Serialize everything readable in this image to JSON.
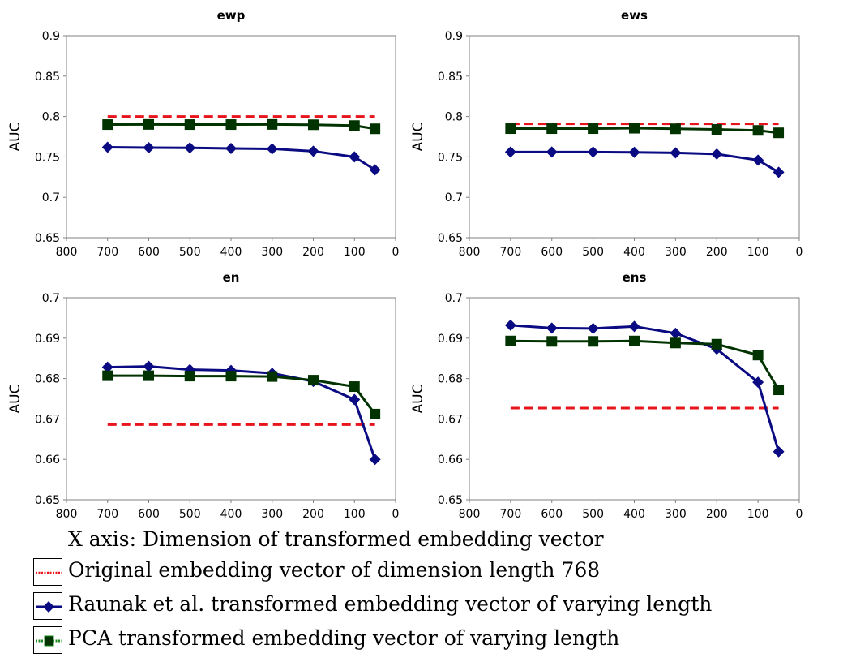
{
  "chart_data": [
    {
      "type": "line",
      "title": "ewp",
      "ylabel": "AUC",
      "xlim": [
        800,
        0
      ],
      "ylim": [
        0.65,
        0.9
      ],
      "xticks": [
        "800",
        "700",
        "600",
        "500",
        "400",
        "300",
        "200",
        "100",
        "0"
      ],
      "yticks": [
        "0.65",
        "0.7",
        "0.75",
        "0.8",
        "0.85",
        "0.9"
      ],
      "x": [
        700,
        600,
        500,
        400,
        300,
        200,
        100,
        50
      ],
      "baseline": 0.8,
      "series": [
        {
          "key": "raunak",
          "values": [
            0.762,
            0.7615,
            0.7612,
            0.7605,
            0.76,
            0.757,
            0.75,
            0.734
          ]
        },
        {
          "key": "pca",
          "values": [
            0.79,
            0.7902,
            0.79,
            0.79,
            0.7902,
            0.7898,
            0.7888,
            0.7848
          ]
        }
      ]
    },
    {
      "type": "line",
      "title": "ews",
      "ylabel": "AUC",
      "xlim": [
        800,
        0
      ],
      "ylim": [
        0.65,
        0.9
      ],
      "xticks": [
        "800",
        "700",
        "600",
        "500",
        "400",
        "300",
        "200",
        "100",
        "0"
      ],
      "yticks": [
        "0.65",
        "0.7",
        "0.75",
        "0.8",
        "0.85",
        "0.9"
      ],
      "x": [
        700,
        600,
        500,
        400,
        300,
        200,
        100,
        50
      ],
      "baseline": 0.791,
      "series": [
        {
          "key": "raunak",
          "values": [
            0.756,
            0.756,
            0.756,
            0.7557,
            0.755,
            0.7535,
            0.746,
            0.731
          ]
        },
        {
          "key": "pca",
          "values": [
            0.785,
            0.785,
            0.785,
            0.7855,
            0.7848,
            0.784,
            0.7828,
            0.7798
          ]
        }
      ]
    },
    {
      "type": "line",
      "title": "en",
      "ylabel": "AUC",
      "xlim": [
        800,
        0
      ],
      "ylim": [
        0.65,
        0.7
      ],
      "xticks": [
        "800",
        "700",
        "600",
        "500",
        "400",
        "300",
        "200",
        "100",
        "0"
      ],
      "yticks": [
        "0.65",
        "0.66",
        "0.67",
        "0.68",
        "0.69",
        "0.7"
      ],
      "x": [
        700,
        600,
        500,
        400,
        300,
        200,
        100,
        50
      ],
      "baseline": 0.6686,
      "series": [
        {
          "key": "raunak",
          "values": [
            0.6828,
            0.683,
            0.6822,
            0.682,
            0.6813,
            0.6793,
            0.6748,
            0.66
          ]
        },
        {
          "key": "pca",
          "values": [
            0.6807,
            0.6807,
            0.6806,
            0.6806,
            0.6805,
            0.6796,
            0.678,
            0.6712
          ]
        }
      ]
    },
    {
      "type": "line",
      "title": "ens",
      "ylabel": "AUC",
      "xlim": [
        800,
        0
      ],
      "ylim": [
        0.65,
        0.7
      ],
      "xticks": [
        "800",
        "700",
        "600",
        "500",
        "400",
        "300",
        "200",
        "100",
        "0"
      ],
      "yticks": [
        "0.65",
        "0.66",
        "0.67",
        "0.68",
        "0.69",
        "0.7"
      ],
      "x": [
        700,
        600,
        500,
        400,
        300,
        200,
        100,
        50
      ],
      "baseline": 0.6727,
      "series": [
        {
          "key": "raunak",
          "values": [
            0.6932,
            0.6925,
            0.6924,
            0.6929,
            0.6912,
            0.6873,
            0.6791,
            0.6619
          ]
        },
        {
          "key": "pca",
          "values": [
            0.6893,
            0.6892,
            0.6892,
            0.6893,
            0.6888,
            0.6885,
            0.6858,
            0.6772
          ]
        }
      ]
    }
  ],
  "legend": {
    "xaxis_note": "X axis: Dimension of transformed embedding vector",
    "items": [
      {
        "key": "baseline",
        "label": "Original embedding vector of dimension length 768"
      },
      {
        "key": "raunak",
        "label": "Raunak et al. transformed embedding vector of varying length"
      },
      {
        "key": "pca",
        "label": "PCA transformed embedding vector of varying length"
      }
    ]
  },
  "colors": {
    "baseline": "#e8141c",
    "raunak": "#0a0a82",
    "pca": "#003300",
    "pca_legend_dots": "#1c8a1c"
  }
}
